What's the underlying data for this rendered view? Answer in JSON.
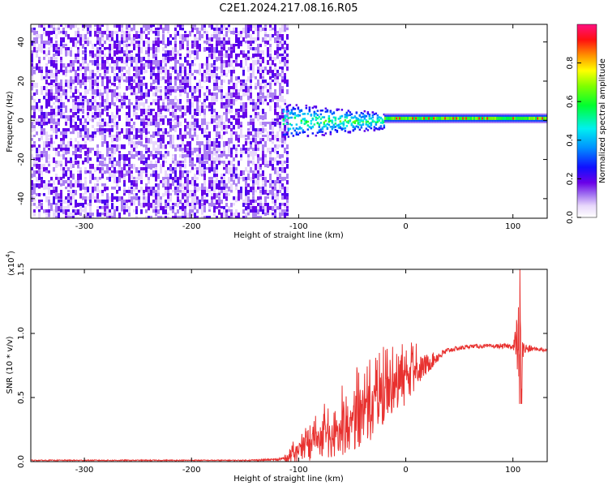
{
  "title": "C2E1.2024.217.08.16.R05",
  "chart_data": [
    {
      "type": "heatmap",
      "xlabel": "Height of straight line (km)",
      "ylabel": "Frequency (Hz)",
      "xlim": [
        -350,
        132
      ],
      "ylim": [
        -50,
        49
      ],
      "x_ticks": [
        -300,
        -200,
        -100,
        0,
        100
      ],
      "x_tick_labels": [
        "-300",
        "-200",
        "-100",
        "0",
        "100"
      ],
      "y_ticks": [
        -40,
        -20,
        0,
        20,
        40
      ],
      "y_tick_labels": [
        "-40",
        "-20",
        "0",
        "20",
        "40"
      ],
      "colorbar": {
        "label": "Normalized spectral amplitude",
        "range": [
          0,
          1
        ],
        "ticks": [
          0.0,
          0.2,
          0.4,
          0.6,
          0.8
        ],
        "tick_labels": [
          "0.0",
          "0.2",
          "0.4",
          "0.6",
          "0.8"
        ],
        "colormap": "rainbow (white-purple-blue-cyan-green-yellow-orange-red-magenta)"
      },
      "regions": [
        {
          "x_range": [
            -350,
            -110
          ],
          "freq_range": [
            -50,
            49
          ],
          "level": 0.1,
          "pattern": "broadband speckle"
        },
        {
          "x_range": [
            -115,
            -20
          ],
          "freq_range": [
            -10,
            10
          ],
          "level": 0.3,
          "pattern": "blob around 0 Hz"
        },
        {
          "x_range": [
            -20,
            132
          ],
          "freq_range": [
            -3,
            3
          ],
          "level": 0.55,
          "pattern": "narrow band at ~1 Hz with red peaks"
        }
      ],
      "grid": false
    },
    {
      "type": "line",
      "xlabel": "Height of straight line (km)",
      "ylabel": "SNR (10 * v/v)",
      "y_scale_label": "(x10",
      "y_scale_exponent": "4",
      "y_scale_suffix": ")",
      "xlim": [
        -350,
        132
      ],
      "ylim": [
        0,
        1.5
      ],
      "x_ticks": [
        -300,
        -200,
        -100,
        0,
        100
      ],
      "x_tick_labels": [
        "-300",
        "-200",
        "-100",
        "0",
        "100"
      ],
      "y_ticks": [
        0.0,
        0.5,
        1.0,
        1.5
      ],
      "y_tick_labels": [
        "0.0",
        "0.5",
        "1.0",
        "1.5"
      ],
      "grid": false,
      "series": [
        {
          "color": "#e8312f",
          "x": [
            -350,
            -300,
            -250,
            -200,
            -150,
            -120,
            -110,
            -100,
            -90,
            -80,
            -70,
            -60,
            -50,
            -40,
            -30,
            -20,
            -10,
            0,
            5,
            10,
            20,
            30,
            40,
            60,
            80,
            100,
            105,
            108,
            110,
            120,
            132
          ],
          "y": [
            0.01,
            0.01,
            0.01,
            0.01,
            0.01,
            0.015,
            0.03,
            0.06,
            0.1,
            0.15,
            0.18,
            0.22,
            0.28,
            0.34,
            0.4,
            0.46,
            0.52,
            0.6,
            0.65,
            0.7,
            0.76,
            0.82,
            0.87,
            0.9,
            0.9,
            0.9,
            0.92,
            0.85,
            0.88,
            0.88,
            0.87
          ],
          "noise": [
            0.004,
            0.004,
            0.004,
            0.004,
            0.004,
            0.01,
            0.03,
            0.08,
            0.1,
            0.12,
            0.15,
            0.18,
            0.2,
            0.22,
            0.22,
            0.2,
            0.18,
            0.15,
            0.14,
            0.12,
            0.08,
            0.04,
            0.02,
            0.015,
            0.015,
            0.02,
            0.3,
            0.3,
            0.05,
            0.015,
            0.015
          ]
        }
      ]
    }
  ]
}
